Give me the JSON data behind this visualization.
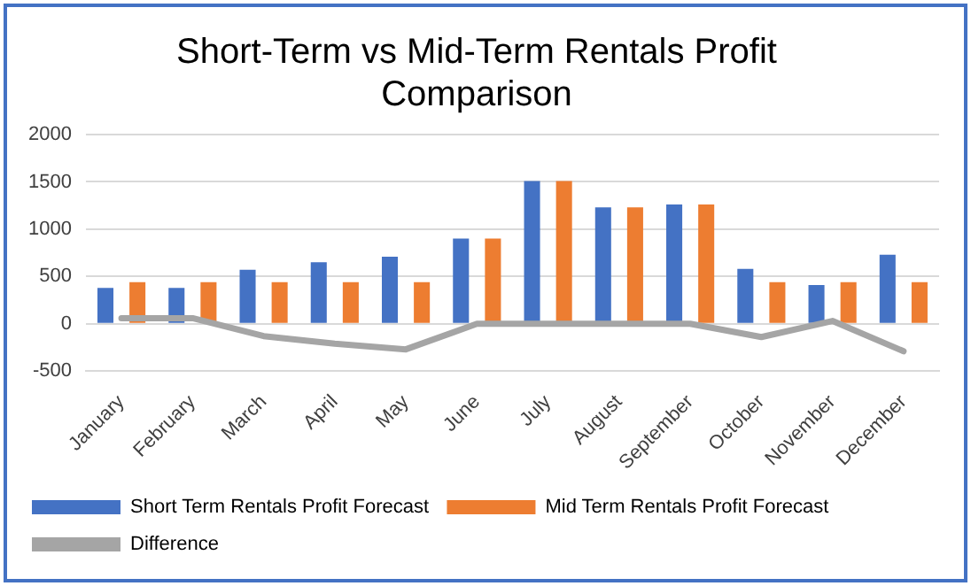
{
  "chart_data": {
    "type": "bar",
    "title": [
      "Short-Term vs Mid-Term Rentals Profit",
      "Comparison"
    ],
    "categories": [
      "January",
      "February",
      "March",
      "April",
      "May",
      "June",
      "July",
      "August",
      "September",
      "October",
      "November",
      "December"
    ],
    "series": [
      {
        "name": "Short Term Rentals Profit Forecast",
        "color": "#4472c4",
        "values": [
          380,
          380,
          570,
          650,
          710,
          900,
          1510,
          1230,
          1260,
          580,
          410,
          730
        ]
      },
      {
        "name": "Mid Term Rentals Profit Forecast",
        "color": "#ed7d31",
        "values": [
          440,
          440,
          440,
          440,
          440,
          900,
          1510,
          1230,
          1260,
          440,
          440,
          440
        ]
      },
      {
        "name": "Difference",
        "type": "line",
        "color": "#a5a5a5",
        "values": [
          60,
          60,
          -130,
          -210,
          -270,
          0,
          0,
          0,
          0,
          -140,
          30,
          -290
        ]
      }
    ],
    "ylim": [
      -500,
      2000
    ],
    "yticks": [
      -500,
      0,
      500,
      1000,
      1500,
      2000
    ],
    "grid": "y",
    "legend": "bottom",
    "marker": "none"
  }
}
